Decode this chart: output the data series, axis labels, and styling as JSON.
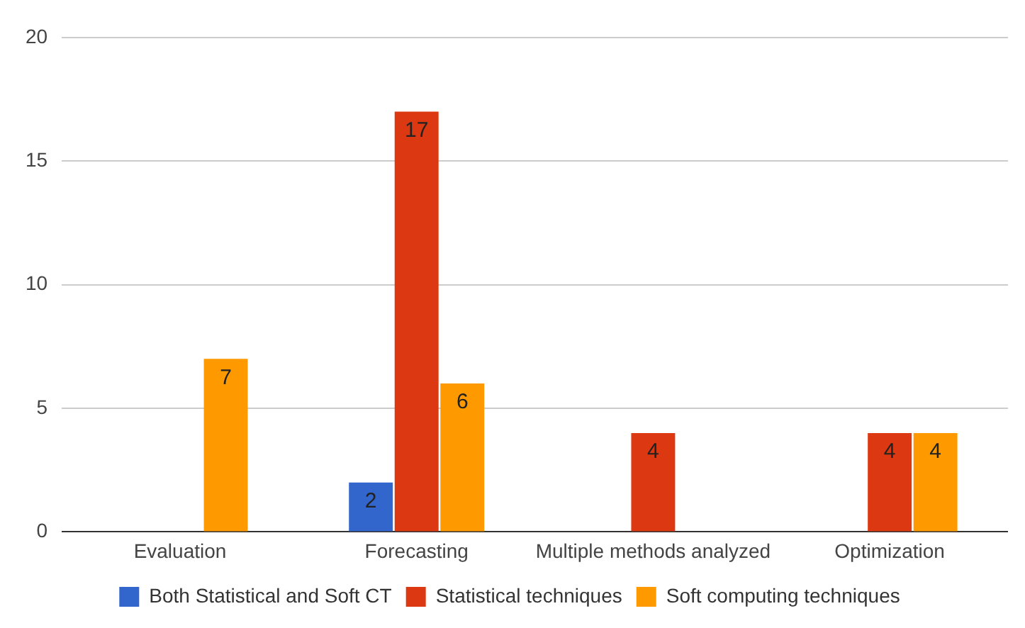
{
  "chart_data": {
    "type": "bar",
    "categories": [
      "Evaluation",
      "Forecasting",
      "Multiple methods analyzed",
      "Optimization"
    ],
    "series": [
      {
        "name": "Both Statistical and Soft CT",
        "color": "#3366cc",
        "values": [
          null,
          2,
          null,
          null
        ]
      },
      {
        "name": "Statistical techniques",
        "color": "#dc3912",
        "values": [
          null,
          17,
          4,
          4
        ]
      },
      {
        "name": "Soft computing techniques",
        "color": "#ff9900",
        "values": [
          7,
          6,
          null,
          4
        ]
      }
    ],
    "ylim": [
      0,
      20
    ],
    "yticks": [
      0,
      5,
      10,
      15,
      20
    ],
    "grid": "y",
    "legend": "bottom",
    "data_labels": true
  }
}
